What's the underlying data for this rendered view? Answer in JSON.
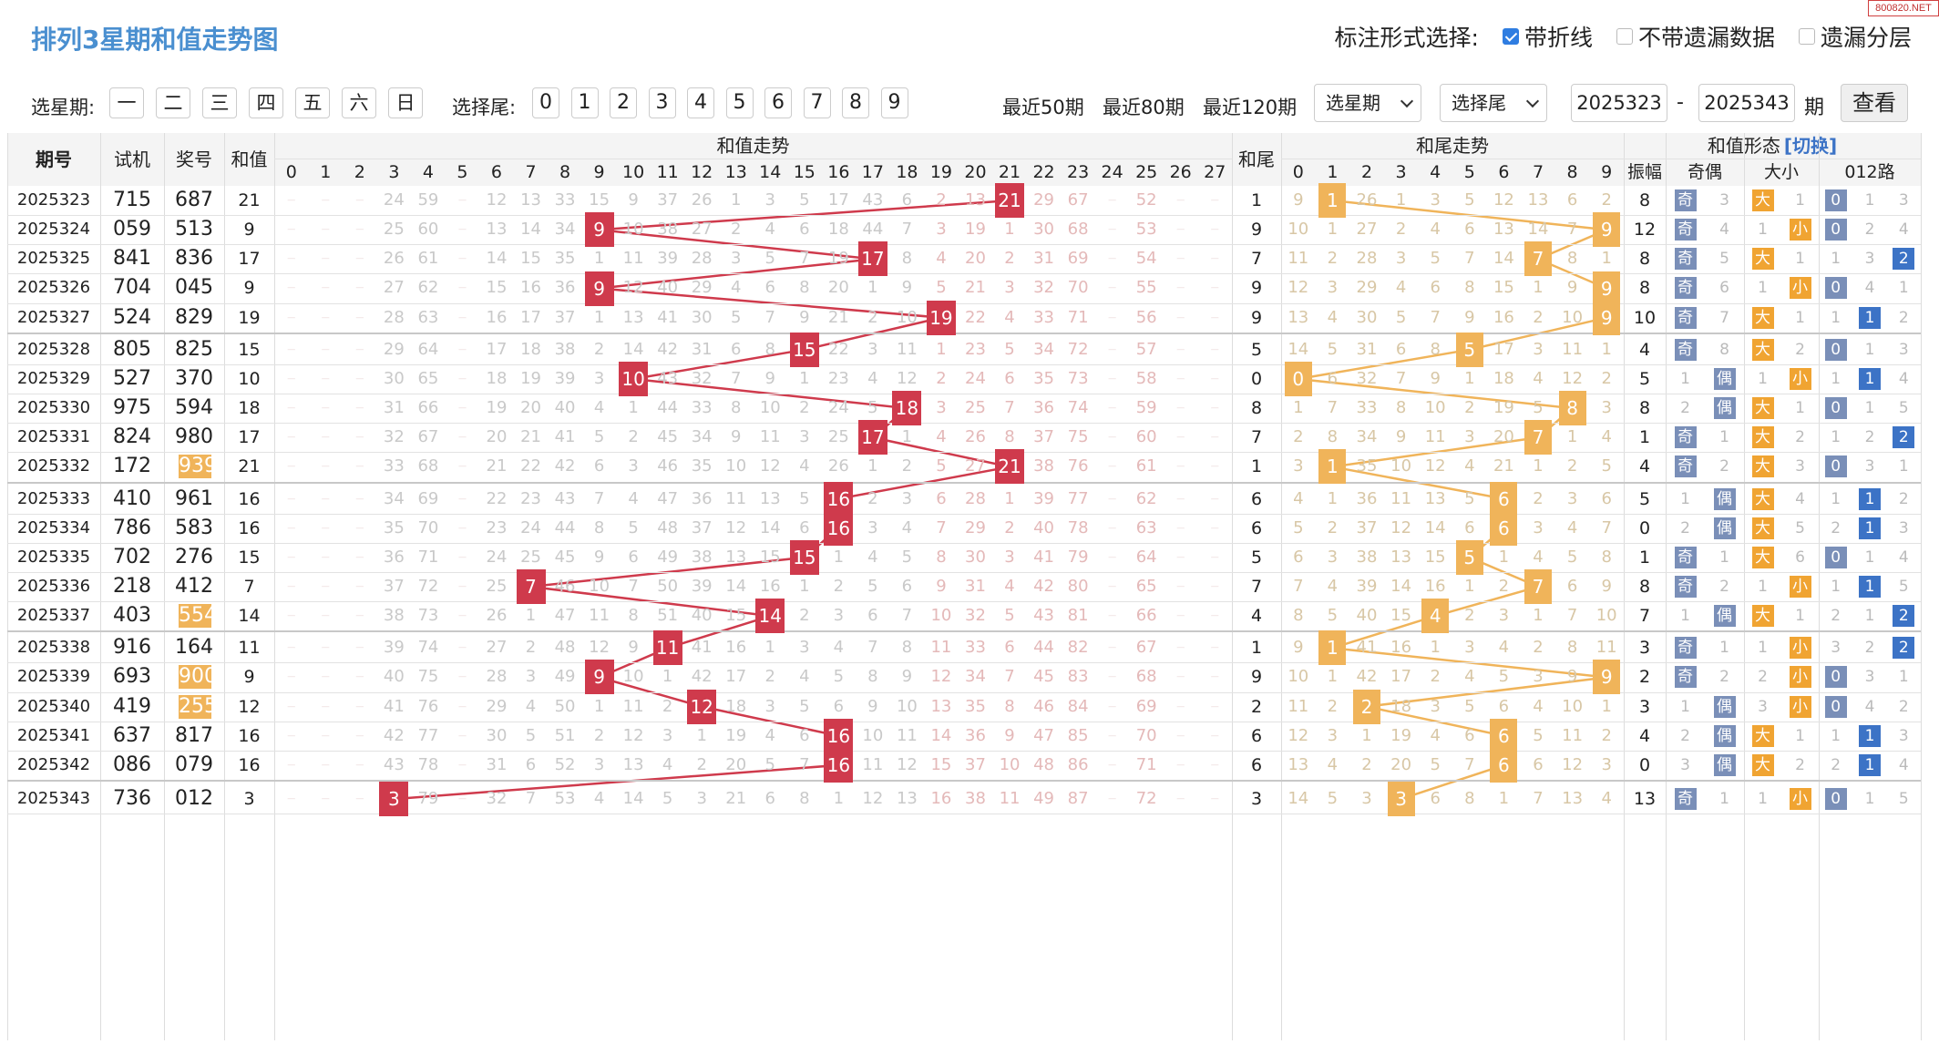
{
  "site_logo": "800820.NET",
  "title": "排列3星期和值走势图",
  "mode": {
    "label": "标注形式选择:",
    "options": [
      {
        "label": "带折线",
        "checked": true
      },
      {
        "label": "不带遗漏数据",
        "checked": false
      },
      {
        "label": "遗漏分层",
        "checked": false
      }
    ]
  },
  "filter": {
    "weekday_label": "选星期:",
    "weekdays": [
      "一",
      "二",
      "三",
      "四",
      "五",
      "六",
      "日"
    ],
    "tail_label": "选择尾:",
    "tails": [
      "0",
      "1",
      "2",
      "3",
      "4",
      "5",
      "6",
      "7",
      "8",
      "9"
    ],
    "recent": [
      "最近50期",
      "最近80期",
      "最近120期"
    ],
    "select_weekday": "选星期",
    "select_tail": "选择尾",
    "from": "2025323",
    "dash": "-",
    "to": "2025343",
    "unit": "期",
    "query": "查看"
  },
  "headers": {
    "period": "期号",
    "test": "试机",
    "prize": "奖号",
    "sum": "和值",
    "sum_trend": "和值走势",
    "tail": "和尾",
    "tail_trend": "和尾走势",
    "shape": "和值形态",
    "switch": "[切换]",
    "amp": "振幅",
    "odd_even": "奇偶",
    "big_small": "大小",
    "r012": "012路",
    "odd": "奇",
    "even": "偶",
    "big": "大",
    "small": "小"
  },
  "sum_cols": [
    "0",
    "1",
    "2",
    "3",
    "4",
    "5",
    "6",
    "7",
    "8",
    "9",
    "10",
    "11",
    "12",
    "13",
    "14",
    "15",
    "16",
    "17",
    "18",
    "19",
    "20",
    "21",
    "22",
    "23",
    "24",
    "25",
    "26",
    "27"
  ],
  "tail_cols": [
    "0",
    "1",
    "2",
    "3",
    "4",
    "5",
    "6",
    "7",
    "8",
    "9"
  ],
  "colors": {
    "sum_marker": "#cf3a4c",
    "tail_marker": "#f0b45a",
    "blue_link": "#4a8fd0"
  },
  "rows": [
    {
      "id": "2025323",
      "test": "715",
      "prize": "687",
      "sum": 21,
      "tail": 1,
      "amp": "8",
      "oe": "奇",
      "oe_other": "3",
      "bs": "大",
      "bs_other": "1",
      "r012": 0,
      "r_other": [
        "1",
        "3"
      ],
      "prize_hl": false,
      "sum_miss": [
        "",
        "",
        "",
        "24",
        "59",
        "",
        "12",
        "13",
        "33",
        "15",
        "9",
        "37",
        "26",
        "1",
        "3",
        "5",
        "17",
        "43",
        "6",
        "2",
        "13",
        "",
        "29",
        "67",
        "",
        "52",
        "",
        ""
      ],
      "tail_miss": [
        "9",
        "",
        "26",
        "1",
        "3",
        "5",
        "12",
        "13",
        "6",
        "2"
      ]
    },
    {
      "id": "2025324",
      "test": "059",
      "prize": "513",
      "sum": 9,
      "tail": 9,
      "amp": "12",
      "oe": "奇",
      "oe_other": "4",
      "bs": "小",
      "bs_other": "1",
      "r012": 0,
      "r_other": [
        "2",
        "4"
      ],
      "prize_hl": false,
      "sum_miss": [
        "",
        "",
        "",
        "25",
        "60",
        "",
        "13",
        "14",
        "34",
        "",
        "10",
        "38",
        "27",
        "2",
        "4",
        "6",
        "18",
        "44",
        "7",
        "3",
        "19",
        "1",
        "30",
        "68",
        "",
        "53",
        "",
        ""
      ],
      "tail_miss": [
        "10",
        "1",
        "27",
        "2",
        "4",
        "6",
        "13",
        "14",
        "7",
        ""
      ]
    },
    {
      "id": "2025325",
      "test": "841",
      "prize": "836",
      "sum": 17,
      "tail": 7,
      "amp": "8",
      "oe": "奇",
      "oe_other": "5",
      "bs": "大",
      "bs_other": "1",
      "r012": 2,
      "r_other": [
        "1",
        "3"
      ],
      "prize_hl": false,
      "sum_miss": [
        "",
        "",
        "",
        "26",
        "61",
        "",
        "14",
        "15",
        "35",
        "1",
        "11",
        "39",
        "28",
        "3",
        "5",
        "7",
        "19",
        "",
        "8",
        "4",
        "20",
        "2",
        "31",
        "69",
        "",
        "54",
        "",
        ""
      ],
      "tail_miss": [
        "11",
        "2",
        "28",
        "3",
        "5",
        "7",
        "14",
        "",
        "8",
        "1"
      ]
    },
    {
      "id": "2025326",
      "test": "704",
      "prize": "045",
      "sum": 9,
      "tail": 9,
      "amp": "8",
      "oe": "奇",
      "oe_other": "6",
      "bs": "小",
      "bs_other": "1",
      "r012": 0,
      "r_other": [
        "4",
        "1"
      ],
      "prize_hl": false,
      "sum_miss": [
        "",
        "",
        "",
        "27",
        "62",
        "",
        "15",
        "16",
        "36",
        "",
        "12",
        "40",
        "29",
        "4",
        "6",
        "8",
        "20",
        "1",
        "9",
        "5",
        "21",
        "3",
        "32",
        "70",
        "",
        "55",
        "",
        ""
      ],
      "tail_miss": [
        "12",
        "3",
        "29",
        "4",
        "6",
        "8",
        "15",
        "1",
        "9",
        ""
      ]
    },
    {
      "id": "2025327",
      "test": "524",
      "prize": "829",
      "sum": 19,
      "tail": 9,
      "amp": "10",
      "oe": "奇",
      "oe_other": "7",
      "bs": "大",
      "bs_other": "1",
      "r012": 1,
      "r_other": [
        "1",
        "2"
      ],
      "prize_hl": false,
      "sum_miss": [
        "",
        "",
        "",
        "28",
        "63",
        "",
        "16",
        "17",
        "37",
        "1",
        "13",
        "41",
        "30",
        "5",
        "7",
        "9",
        "21",
        "2",
        "10",
        "",
        "22",
        "4",
        "33",
        "71",
        "",
        "56",
        "",
        ""
      ],
      "tail_miss": [
        "13",
        "4",
        "30",
        "5",
        "7",
        "9",
        "16",
        "2",
        "10",
        ""
      ]
    },
    {
      "id": "2025328",
      "test": "805",
      "prize": "825",
      "sum": 15,
      "tail": 5,
      "amp": "4",
      "oe": "奇",
      "oe_other": "8",
      "bs": "大",
      "bs_other": "2",
      "r012": 0,
      "r_other": [
        "1",
        "3"
      ],
      "prize_hl": false,
      "sum_miss": [
        "",
        "",
        "",
        "29",
        "64",
        "",
        "17",
        "18",
        "38",
        "2",
        "14",
        "42",
        "31",
        "6",
        "8",
        "",
        "22",
        "3",
        "11",
        "1",
        "23",
        "5",
        "34",
        "72",
        "",
        "57",
        "",
        ""
      ],
      "tail_miss": [
        "14",
        "5",
        "31",
        "6",
        "8",
        "",
        "17",
        "3",
        "11",
        "1"
      ]
    },
    {
      "id": "2025329",
      "test": "527",
      "prize": "370",
      "sum": 10,
      "tail": 0,
      "amp": "5",
      "oe": "偶",
      "oe_other": "1",
      "bs": "小",
      "bs_other": "1",
      "r012": 1,
      "r_other": [
        "1",
        "4"
      ],
      "prize_hl": false,
      "sum_miss": [
        "",
        "",
        "",
        "30",
        "65",
        "",
        "18",
        "19",
        "39",
        "3",
        "",
        "43",
        "32",
        "7",
        "9",
        "1",
        "23",
        "4",
        "12",
        "2",
        "24",
        "6",
        "35",
        "73",
        "",
        "58",
        "",
        ""
      ],
      "tail_miss": [
        "",
        "6",
        "32",
        "7",
        "9",
        "1",
        "18",
        "4",
        "12",
        "2"
      ]
    },
    {
      "id": "2025330",
      "test": "975",
      "prize": "594",
      "sum": 18,
      "tail": 8,
      "amp": "8",
      "oe": "偶",
      "oe_other": "2",
      "bs": "大",
      "bs_other": "1",
      "r012": 0,
      "r_other": [
        "1",
        "5"
      ],
      "prize_hl": false,
      "sum_miss": [
        "",
        "",
        "",
        "31",
        "66",
        "",
        "19",
        "20",
        "40",
        "4",
        "1",
        "44",
        "33",
        "8",
        "10",
        "2",
        "24",
        "5",
        "",
        "3",
        "25",
        "7",
        "36",
        "74",
        "",
        "59",
        "",
        ""
      ],
      "tail_miss": [
        "1",
        "7",
        "33",
        "8",
        "10",
        "2",
        "19",
        "5",
        "",
        "3"
      ]
    },
    {
      "id": "2025331",
      "test": "824",
      "prize": "980",
      "sum": 17,
      "tail": 7,
      "amp": "1",
      "oe": "奇",
      "oe_other": "1",
      "bs": "大",
      "bs_other": "2",
      "r012": 2,
      "r_other": [
        "1",
        "2"
      ],
      "prize_hl": false,
      "sum_miss": [
        "",
        "",
        "",
        "32",
        "67",
        "",
        "20",
        "21",
        "41",
        "5",
        "2",
        "45",
        "34",
        "9",
        "11",
        "3",
        "25",
        "",
        "1",
        "4",
        "26",
        "8",
        "37",
        "75",
        "",
        "60",
        "",
        ""
      ],
      "tail_miss": [
        "2",
        "8",
        "34",
        "9",
        "11",
        "3",
        "20",
        "",
        "1",
        "4"
      ]
    },
    {
      "id": "2025332",
      "test": "172",
      "prize": "939",
      "sum": 21,
      "tail": 1,
      "amp": "4",
      "oe": "奇",
      "oe_other": "2",
      "bs": "大",
      "bs_other": "3",
      "r012": 0,
      "r_other": [
        "3",
        "1"
      ],
      "prize_hl": true,
      "sum_miss": [
        "",
        "",
        "",
        "33",
        "68",
        "",
        "21",
        "22",
        "42",
        "6",
        "3",
        "46",
        "35",
        "10",
        "12",
        "4",
        "26",
        "1",
        "2",
        "5",
        "27",
        "",
        "38",
        "76",
        "",
        "61",
        "",
        ""
      ],
      "tail_miss": [
        "3",
        "",
        "35",
        "10",
        "12",
        "4",
        "21",
        "1",
        "2",
        "5"
      ]
    },
    {
      "id": "2025333",
      "test": "410",
      "prize": "961",
      "sum": 16,
      "tail": 6,
      "amp": "5",
      "oe": "偶",
      "oe_other": "1",
      "bs": "大",
      "bs_other": "4",
      "r012": 1,
      "r_other": [
        "1",
        "2"
      ],
      "prize_hl": false,
      "sum_miss": [
        "",
        "",
        "",
        "34",
        "69",
        "",
        "22",
        "23",
        "43",
        "7",
        "4",
        "47",
        "36",
        "11",
        "13",
        "5",
        "",
        "2",
        "3",
        "6",
        "28",
        "1",
        "39",
        "77",
        "",
        "62",
        "",
        ""
      ],
      "tail_miss": [
        "4",
        "1",
        "36",
        "11",
        "13",
        "5",
        "",
        "2",
        "3",
        "6"
      ]
    },
    {
      "id": "2025334",
      "test": "786",
      "prize": "583",
      "sum": 16,
      "tail": 6,
      "amp": "0",
      "oe": "偶",
      "oe_other": "2",
      "bs": "大",
      "bs_other": "5",
      "r012": 1,
      "r_other": [
        "2",
        "3"
      ],
      "prize_hl": false,
      "sum_miss": [
        "",
        "",
        "",
        "35",
        "70",
        "",
        "23",
        "24",
        "44",
        "8",
        "5",
        "48",
        "37",
        "12",
        "14",
        "6",
        "",
        "3",
        "4",
        "7",
        "29",
        "2",
        "40",
        "78",
        "",
        "63",
        "",
        ""
      ],
      "tail_miss": [
        "5",
        "2",
        "37",
        "12",
        "14",
        "6",
        "",
        "3",
        "4",
        "7"
      ]
    },
    {
      "id": "2025335",
      "test": "702",
      "prize": "276",
      "sum": 15,
      "tail": 5,
      "amp": "1",
      "oe": "奇",
      "oe_other": "1",
      "bs": "大",
      "bs_other": "6",
      "r012": 0,
      "r_other": [
        "1",
        "4"
      ],
      "prize_hl": false,
      "sum_miss": [
        "",
        "",
        "",
        "36",
        "71",
        "",
        "24",
        "25",
        "45",
        "9",
        "6",
        "49",
        "38",
        "13",
        "15",
        "",
        "1",
        "4",
        "5",
        "8",
        "30",
        "3",
        "41",
        "79",
        "",
        "64",
        "",
        ""
      ],
      "tail_miss": [
        "6",
        "3",
        "38",
        "13",
        "15",
        "",
        "1",
        "4",
        "5",
        "8"
      ]
    },
    {
      "id": "2025336",
      "test": "218",
      "prize": "412",
      "sum": 7,
      "tail": 7,
      "amp": "8",
      "oe": "奇",
      "oe_other": "2",
      "bs": "小",
      "bs_other": "1",
      "r012": 1,
      "r_other": [
        "1",
        "5"
      ],
      "prize_hl": false,
      "sum_miss": [
        "",
        "",
        "",
        "37",
        "72",
        "",
        "25",
        "",
        "46",
        "10",
        "7",
        "50",
        "39",
        "14",
        "16",
        "1",
        "2",
        "5",
        "6",
        "9",
        "31",
        "4",
        "42",
        "80",
        "",
        "65",
        "",
        ""
      ],
      "tail_miss": [
        "7",
        "4",
        "39",
        "14",
        "16",
        "1",
        "2",
        "",
        "6",
        "9"
      ]
    },
    {
      "id": "2025337",
      "test": "403",
      "prize": "554",
      "sum": 14,
      "tail": 4,
      "amp": "7",
      "oe": "偶",
      "oe_other": "1",
      "bs": "大",
      "bs_other": "1",
      "r012": 2,
      "r_other": [
        "2",
        "1"
      ],
      "prize_hl": true,
      "sum_miss": [
        "",
        "",
        "",
        "38",
        "73",
        "",
        "26",
        "1",
        "47",
        "11",
        "8",
        "51",
        "40",
        "15",
        "",
        "2",
        "3",
        "6",
        "7",
        "10",
        "32",
        "5",
        "43",
        "81",
        "",
        "66",
        "",
        ""
      ],
      "tail_miss": [
        "8",
        "5",
        "40",
        "15",
        "",
        "2",
        "3",
        "1",
        "7",
        "10"
      ]
    },
    {
      "id": "2025338",
      "test": "916",
      "prize": "164",
      "sum": 11,
      "tail": 1,
      "amp": "3",
      "oe": "奇",
      "oe_other": "1",
      "bs": "小",
      "bs_other": "1",
      "r012": 2,
      "r_other": [
        "3",
        "2"
      ],
      "prize_hl": false,
      "sum_miss": [
        "",
        "",
        "",
        "39",
        "74",
        "",
        "27",
        "2",
        "48",
        "12",
        "9",
        "",
        "41",
        "16",
        "1",
        "3",
        "4",
        "7",
        "8",
        "11",
        "33",
        "6",
        "44",
        "82",
        "",
        "67",
        "",
        ""
      ],
      "tail_miss": [
        "9",
        "",
        "41",
        "16",
        "1",
        "3",
        "4",
        "2",
        "8",
        "11"
      ]
    },
    {
      "id": "2025339",
      "test": "693",
      "prize": "900",
      "sum": 9,
      "tail": 9,
      "amp": "2",
      "oe": "奇",
      "oe_other": "2",
      "bs": "小",
      "bs_other": "2",
      "r012": 0,
      "r_other": [
        "3",
        "1"
      ],
      "prize_hl": true,
      "sum_miss": [
        "",
        "",
        "",
        "40",
        "75",
        "",
        "28",
        "3",
        "49",
        "",
        "10",
        "1",
        "42",
        "17",
        "2",
        "4",
        "5",
        "8",
        "9",
        "12",
        "34",
        "7",
        "45",
        "83",
        "",
        "68",
        "",
        ""
      ],
      "tail_miss": [
        "10",
        "1",
        "42",
        "17",
        "2",
        "4",
        "5",
        "3",
        "9",
        ""
      ]
    },
    {
      "id": "2025340",
      "test": "419",
      "prize": "255",
      "sum": 12,
      "tail": 2,
      "amp": "3",
      "oe": "偶",
      "oe_other": "1",
      "bs": "小",
      "bs_other": "3",
      "r012": 0,
      "r_other": [
        "4",
        "2"
      ],
      "prize_hl": true,
      "sum_miss": [
        "",
        "",
        "",
        "41",
        "76",
        "",
        "29",
        "4",
        "50",
        "1",
        "11",
        "2",
        "",
        "18",
        "3",
        "5",
        "6",
        "9",
        "10",
        "13",
        "35",
        "8",
        "46",
        "84",
        "",
        "69",
        "",
        ""
      ],
      "tail_miss": [
        "11",
        "2",
        "",
        "18",
        "3",
        "5",
        "6",
        "4",
        "10",
        "1"
      ]
    },
    {
      "id": "2025341",
      "test": "637",
      "prize": "817",
      "sum": 16,
      "tail": 6,
      "amp": "4",
      "oe": "偶",
      "oe_other": "2",
      "bs": "大",
      "bs_other": "1",
      "r012": 1,
      "r_other": [
        "1",
        "3"
      ],
      "prize_hl": false,
      "sum_miss": [
        "",
        "",
        "",
        "42",
        "77",
        "",
        "30",
        "5",
        "51",
        "2",
        "12",
        "3",
        "1",
        "19",
        "4",
        "6",
        "",
        "10",
        "11",
        "14",
        "36",
        "9",
        "47",
        "85",
        "",
        "70",
        "",
        ""
      ],
      "tail_miss": [
        "12",
        "3",
        "1",
        "19",
        "4",
        "6",
        "",
        "5",
        "11",
        "2"
      ]
    },
    {
      "id": "2025342",
      "test": "086",
      "prize": "079",
      "sum": 16,
      "tail": 6,
      "amp": "0",
      "oe": "偶",
      "oe_other": "3",
      "bs": "大",
      "bs_other": "2",
      "r012": 1,
      "r_other": [
        "2",
        "4"
      ],
      "prize_hl": false,
      "sum_miss": [
        "",
        "",
        "",
        "43",
        "78",
        "",
        "31",
        "6",
        "52",
        "3",
        "13",
        "4",
        "2",
        "20",
        "5",
        "7",
        "",
        "11",
        "12",
        "15",
        "37",
        "10",
        "48",
        "86",
        "",
        "71",
        "",
        ""
      ],
      "tail_miss": [
        "13",
        "4",
        "2",
        "20",
        "5",
        "7",
        "",
        "6",
        "12",
        "3"
      ]
    },
    {
      "id": "2025343",
      "test": "736",
      "prize": "012",
      "sum": 3,
      "tail": 3,
      "amp": "13",
      "oe": "奇",
      "oe_other": "1",
      "bs": "小",
      "bs_other": "1",
      "r012": 0,
      "r_other": [
        "1",
        "5"
      ],
      "prize_hl": false,
      "sum_miss": [
        "",
        "",
        "",
        "",
        "79",
        "",
        "32",
        "7",
        "53",
        "4",
        "14",
        "5",
        "3",
        "21",
        "6",
        "8",
        "1",
        "12",
        "13",
        "16",
        "38",
        "11",
        "49",
        "87",
        "",
        "72",
        "",
        ""
      ],
      "tail_miss": [
        "14",
        "5",
        "3",
        "",
        "6",
        "8",
        "1",
        "7",
        "13",
        "4"
      ]
    }
  ]
}
